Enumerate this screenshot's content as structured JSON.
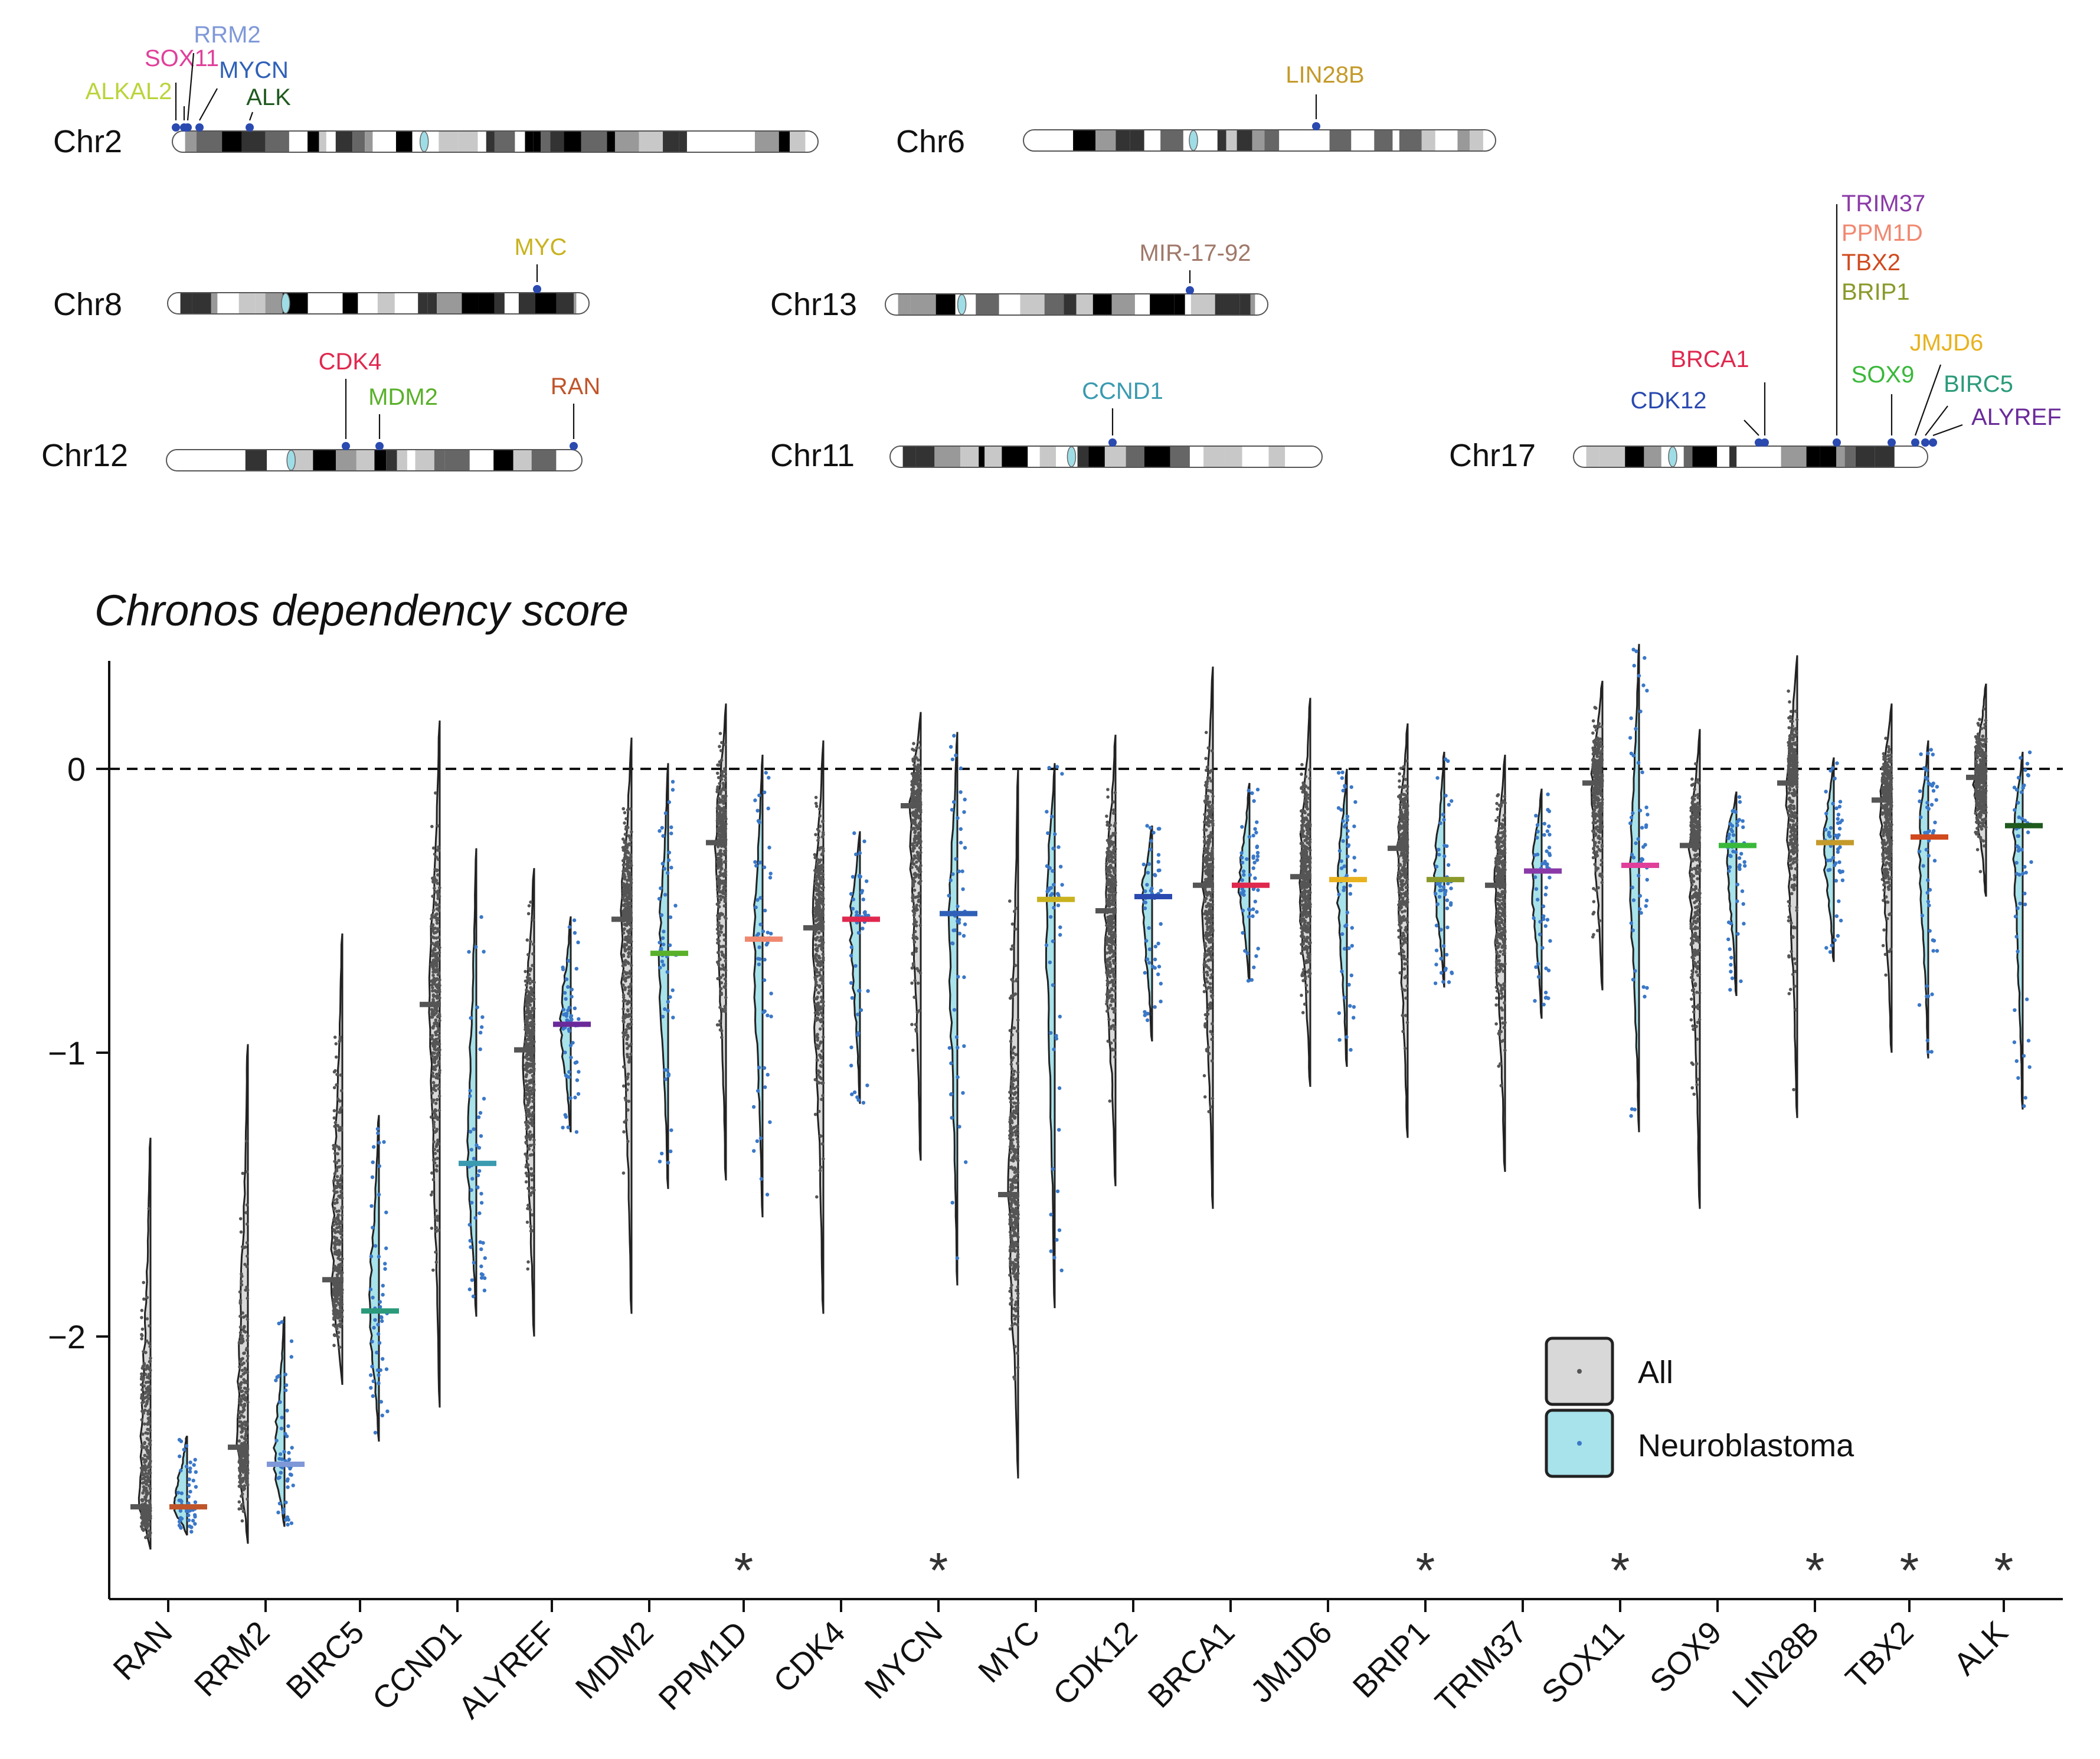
{
  "ideograms": [
    {
      "name": "Chr2",
      "genes": [
        {
          "name": "SOX11",
          "color": "#e0409a"
        },
        {
          "name": "RRM2",
          "color": "#7f98d8"
        },
        {
          "name": "MYCN",
          "color": "#2e60b8"
        },
        {
          "name": "ALKAL2",
          "color": "#b9d43a"
        },
        {
          "name": "ALK",
          "color": "#1f5a1f"
        }
      ]
    },
    {
      "name": "Chr6",
      "genes": [
        {
          "name": "LIN28B",
          "color": "#c49a2a"
        }
      ]
    },
    {
      "name": "Chr8",
      "genes": [
        {
          "name": "MYC",
          "color": "#c9b21e"
        }
      ]
    },
    {
      "name": "Chr13",
      "genes": [
        {
          "name": "MIR-17-92",
          "color": "#a0786a"
        }
      ]
    },
    {
      "name": "Chr12",
      "genes": [
        {
          "name": "CDK4",
          "color": "#e0284e"
        },
        {
          "name": "MDM2",
          "color": "#5ab02a"
        },
        {
          "name": "RAN",
          "color": "#c0552a"
        }
      ]
    },
    {
      "name": "Chr11",
      "genes": [
        {
          "name": "CCND1",
          "color": "#3a9ab0"
        }
      ]
    },
    {
      "name": "Chr17",
      "genes": [
        {
          "name": "TRIM37",
          "color": "#8a3aa8"
        },
        {
          "name": "PPM1D",
          "color": "#f08870"
        },
        {
          "name": "TBX2",
          "color": "#d04a1e"
        },
        {
          "name": "BRIP1",
          "color": "#8a9a2a"
        },
        {
          "name": "BRCA1",
          "color": "#e0284e"
        },
        {
          "name": "CDK12",
          "color": "#2a4ab0"
        },
        {
          "name": "SOX9",
          "color": "#3ab83a"
        },
        {
          "name": "JMJD6",
          "color": "#e8b21e"
        },
        {
          "name": "BIRC5",
          "color": "#2a9a7a"
        },
        {
          "name": "ALYREF",
          "color": "#6a2a9a"
        }
      ]
    }
  ],
  "chart_data": {
    "type": "violin",
    "title": "Chronos dependency score",
    "xlabel": "",
    "ylabel": "Chronos dependency score",
    "ylim": [
      -2.9,
      0.37
    ],
    "yticks": [
      0,
      -1,
      -2
    ],
    "ytick_labels": [
      "0",
      "−1",
      "−2"
    ],
    "reference_line": 0,
    "categories": [
      "RAN",
      "RRM2",
      "BIRC5",
      "CCND1",
      "ALYREF",
      "MDM2",
      "PPM1D",
      "CDK4",
      "MYCN",
      "MYC",
      "CDK12",
      "BRCA1",
      "JMJD6",
      "BRIP1",
      "TRIM37",
      "SOX11",
      "SOX9",
      "LIN28B",
      "TBX2",
      "ALK"
    ],
    "series": [
      {
        "name": "All",
        "fill": "#d8d8d8",
        "point_color": "#555555",
        "medians": [
          -2.6,
          -2.39,
          -1.8,
          -0.83,
          -0.99,
          -0.53,
          -0.26,
          -0.56,
          -0.13,
          -1.5,
          -0.5,
          -0.41,
          -0.38,
          -0.28,
          -0.41,
          -0.05,
          -0.27,
          -0.05,
          -0.11,
          -0.03
        ],
        "min": [
          -2.75,
          -2.73,
          -2.17,
          -2.25,
          -2.0,
          -1.92,
          -1.45,
          -1.92,
          -1.38,
          -2.5,
          -1.47,
          -1.55,
          -1.12,
          -1.3,
          -1.42,
          -0.78,
          -1.55,
          -1.23,
          -1.0,
          -0.45
        ],
        "max": [
          -1.3,
          -0.97,
          -0.58,
          0.17,
          -0.35,
          0.11,
          0.23,
          0.1,
          0.2,
          0.0,
          0.12,
          0.36,
          0.25,
          0.16,
          0.05,
          0.31,
          0.14,
          0.4,
          0.23,
          0.3
        ]
      },
      {
        "name": "Neuroblastoma",
        "fill": "#a8e2ea",
        "point_color": "#3a78c8",
        "medians": [
          -2.6,
          -2.45,
          -1.91,
          -1.39,
          -0.9,
          -0.65,
          -0.6,
          -0.53,
          -0.51,
          -0.46,
          -0.45,
          -0.41,
          -0.39,
          -0.39,
          -0.36,
          -0.34,
          -0.27,
          -0.26,
          -0.24,
          -0.2
        ],
        "min": [
          -2.7,
          -2.67,
          -2.37,
          -1.93,
          -1.28,
          -1.48,
          -1.58,
          -1.18,
          -1.82,
          -1.9,
          -0.96,
          -0.75,
          -1.05,
          -0.77,
          -0.88,
          -1.28,
          -0.8,
          -0.68,
          -1.02,
          -1.2
        ],
        "max": [
          -2.35,
          -1.93,
          -1.22,
          -0.28,
          -0.52,
          0.02,
          0.05,
          -0.22,
          0.13,
          0.02,
          -0.2,
          -0.05,
          0.0,
          0.06,
          -0.07,
          0.44,
          -0.08,
          0.04,
          0.1,
          0.06
        ]
      }
    ],
    "significant": [
      "PPM1D",
      "MYCN",
      "BRIP1",
      "SOX11",
      "LIN28B",
      "TBX2",
      "ALK"
    ],
    "significance_marker": "*",
    "legend": {
      "position": "bottom-right",
      "entries": [
        "All",
        "Neuroblastoma"
      ]
    }
  }
}
